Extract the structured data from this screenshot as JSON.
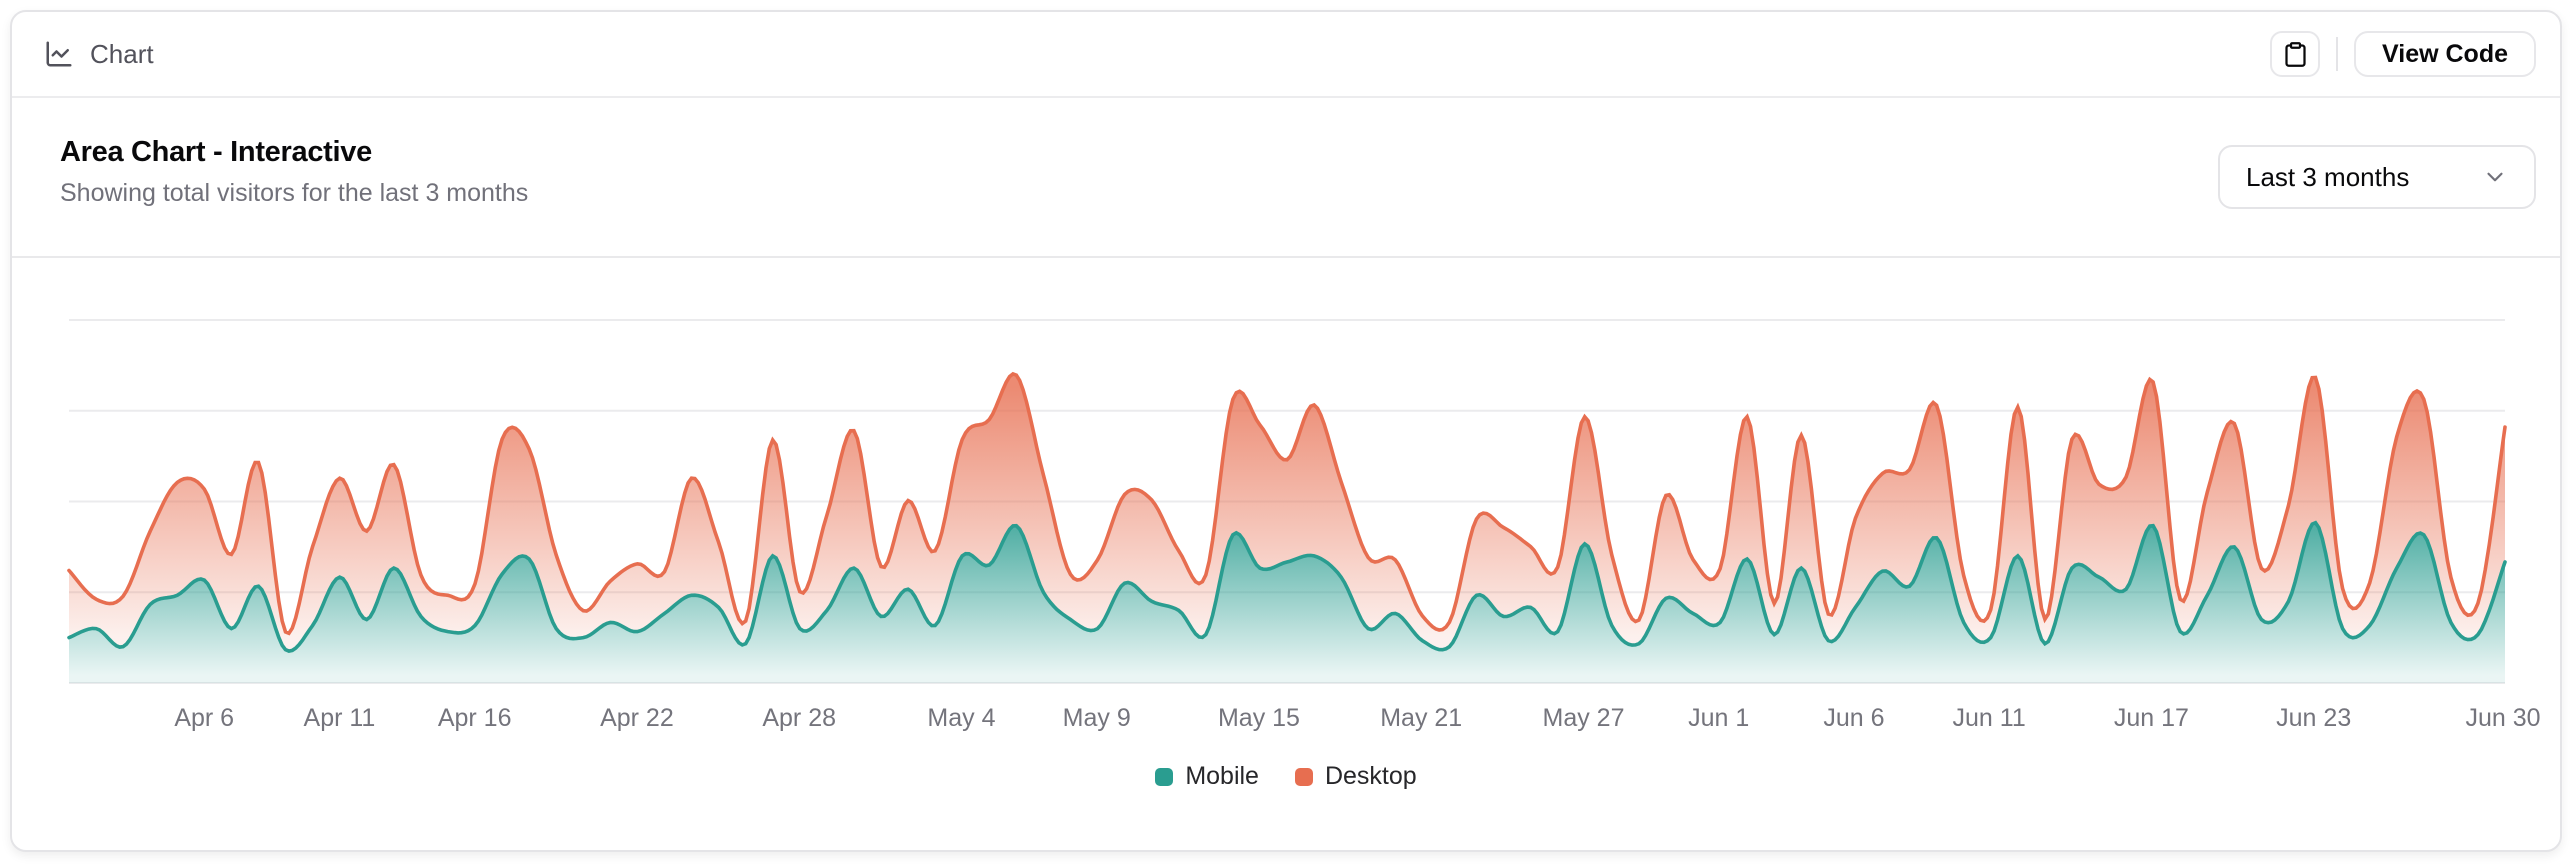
{
  "toolbar": {
    "label": "Chart",
    "view_code_label": "View Code",
    "icons": {
      "left": "chart-line-icon",
      "copy": "clipboard-icon"
    }
  },
  "header": {
    "title": "Area Chart - Interactive",
    "subtitle": "Showing total visitors for the last 3 months",
    "range_selector": {
      "value": "Last 3 months",
      "icon": "chevron-down-icon"
    }
  },
  "chart_data": {
    "type": "area",
    "stacked": true,
    "interpolation": "natural",
    "title": "Area Chart - Interactive",
    "xlabel": "",
    "ylabel": "",
    "x_dates": {
      "start": "2024-04-01",
      "end": "2024-06-30",
      "step_days": 1,
      "count": 91
    },
    "series": [
      {
        "name": "Mobile",
        "color": "#2a9d90",
        "values": [
          150,
          180,
          120,
          260,
          290,
          340,
          180,
          320,
          110,
          190,
          350,
          210,
          380,
          220,
          170,
          190,
          360,
          410,
          180,
          150,
          200,
          170,
          230,
          290,
          250,
          130,
          420,
          180,
          240,
          380,
          220,
          310,
          190,
          420,
          390,
          520,
          300,
          210,
          180,
          330,
          270,
          240,
          160,
          490,
          380,
          400,
          420,
          350,
          180,
          230,
          140,
          120,
          290,
          220,
          250,
          170,
          460,
          190,
          130,
          280,
          230,
          200,
          410,
          160,
          380,
          140,
          250,
          370,
          320,
          480,
          200,
          150,
          420,
          130,
          380,
          350,
          310,
          520,
          170,
          290,
          450,
          210,
          270,
          530,
          180,
          190,
          380,
          490,
          200,
          160,
          400
        ]
      },
      {
        "name": "Desktop",
        "color": "#e76e50",
        "values": [
          222,
          97,
          167,
          242,
          373,
          301,
          245,
          409,
          59,
          261,
          327,
          292,
          342,
          137,
          120,
          138,
          446,
          364,
          243,
          89,
          137,
          224,
          138,
          387,
          215,
          75,
          383,
          122,
          315,
          454,
          165,
          293,
          247,
          385,
          481,
          498,
          388,
          149,
          227,
          293,
          335,
          197,
          197,
          448,
          473,
          338,
          499,
          315,
          235,
          177,
          82,
          81,
          252,
          294,
          201,
          213,
          420,
          233,
          78,
          340,
          178,
          178,
          470,
          103,
          439,
          88,
          294,
          323,
          385,
          438,
          155,
          92,
          492,
          81,
          426,
          307,
          371,
          475,
          107,
          341,
          408,
          169,
          317,
          480,
          132,
          141,
          434,
          448,
          149,
          103,
          446
        ]
      }
    ],
    "x_tick_indices": [
      5,
      10,
      15,
      21,
      27,
      33,
      38,
      44,
      50,
      56,
      61,
      66,
      71,
      77,
      83,
      90
    ],
    "x_tick_labels": [
      "Apr 6",
      "Apr 11",
      "Apr 16",
      "Apr 22",
      "Apr 28",
      "May 4",
      "May 9",
      "May 15",
      "May 21",
      "May 27",
      "Jun 1",
      "Jun 6",
      "Jun 11",
      "Jun 17",
      "Jun 23",
      "Jun 30"
    ],
    "ylim": [
      0,
      1200
    ],
    "y_gridlines": [
      0,
      300,
      600,
      900,
      1200
    ],
    "grid": "horizontal",
    "legend": {
      "position": "bottom",
      "entries": [
        {
          "label": "Mobile",
          "color": "#2a9d90"
        },
        {
          "label": "Desktop",
          "color": "#e76e50"
        }
      ]
    },
    "fill_gradient_opacity": {
      "top": 0.8,
      "bottom": 0.1
    }
  },
  "colors": {
    "card_border": "#e4e4e7",
    "divider": "#e9e9eb",
    "gridline": "#ebebed",
    "tick_text": "#74747c",
    "muted_text": "#71717a",
    "foreground": "#09090b"
  }
}
